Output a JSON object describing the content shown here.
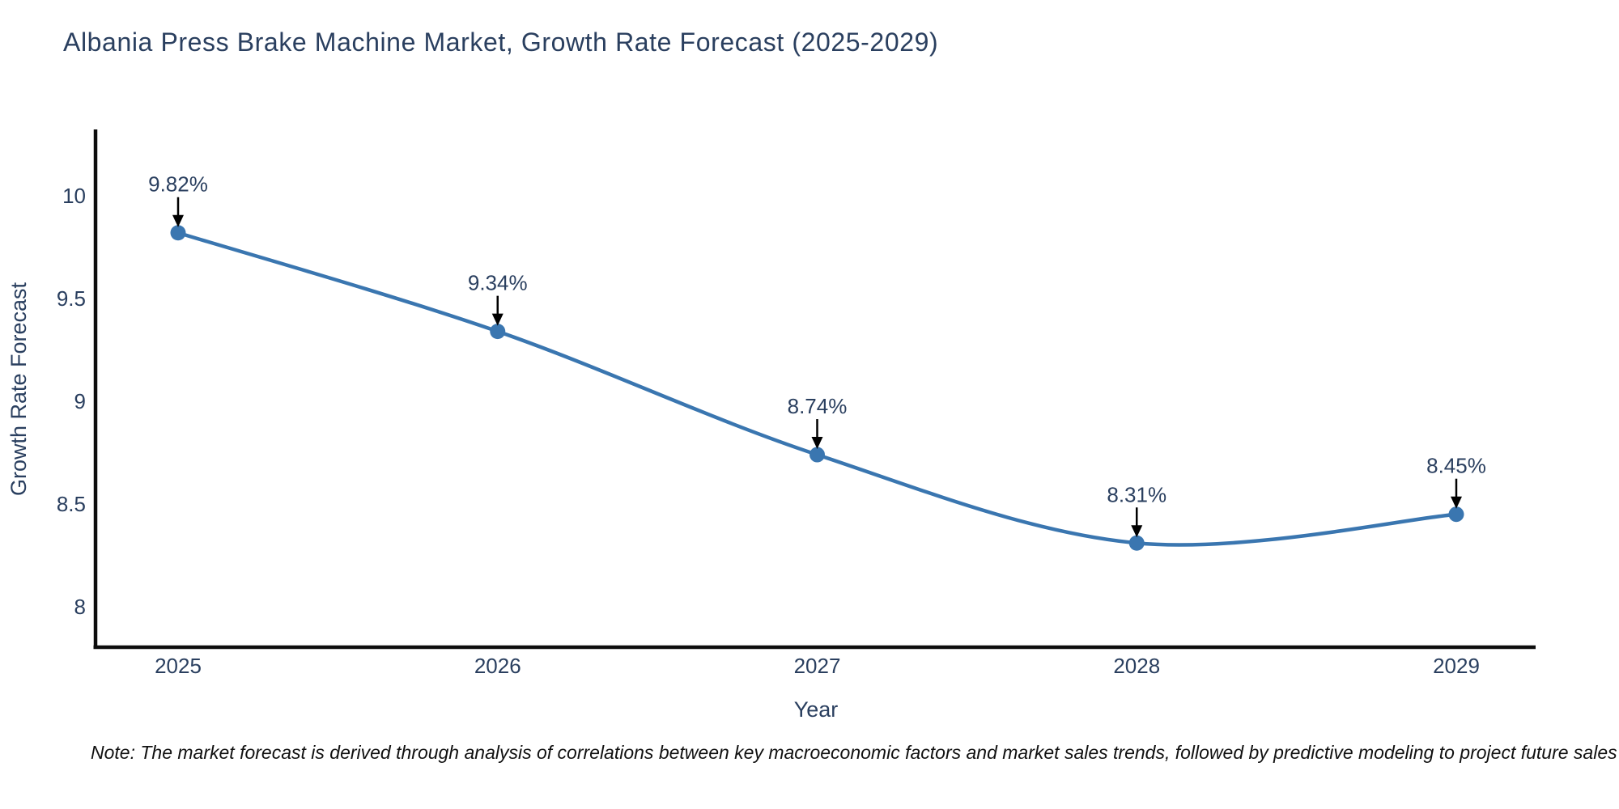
{
  "title": "Albania Press Brake Machine Market, Growth Rate Forecast (2025-2029)",
  "note": "Note: The market forecast is derived through analysis of correlations between key macroeconomic factors and market sales trends, followed by predictive modeling to project future sales",
  "colors": {
    "line": "#3a76b0",
    "marker": "#3a76b0",
    "axis": "#0d0d0d",
    "text": "#2a3f5f",
    "annotation_arrow": "#000000",
    "background": "#ffffff"
  },
  "chart_data": {
    "type": "line",
    "title": "Albania Press Brake Machine Market, Growth Rate Forecast (2025-2029)",
    "xlabel": "Year",
    "ylabel": "Growth Rate Forecast",
    "x": [
      2025,
      2026,
      2027,
      2028,
      2029
    ],
    "xtick_labels": [
      "2025",
      "2026",
      "2027",
      "2028",
      "2029"
    ],
    "values": [
      9.82,
      9.34,
      8.74,
      8.31,
      8.45
    ],
    "point_labels": [
      "9.82%",
      "9.34%",
      "8.74%",
      "8.31%",
      "8.45%"
    ],
    "yticks": [
      10,
      9.5,
      9,
      8.5,
      8
    ],
    "ytick_labels": [
      "10",
      "9.5",
      "9",
      "8.5",
      "8"
    ],
    "ylim": [
      7.8,
      10.5
    ],
    "line_shape": "spline",
    "markers": true,
    "grid": false,
    "legend_position": "none"
  }
}
